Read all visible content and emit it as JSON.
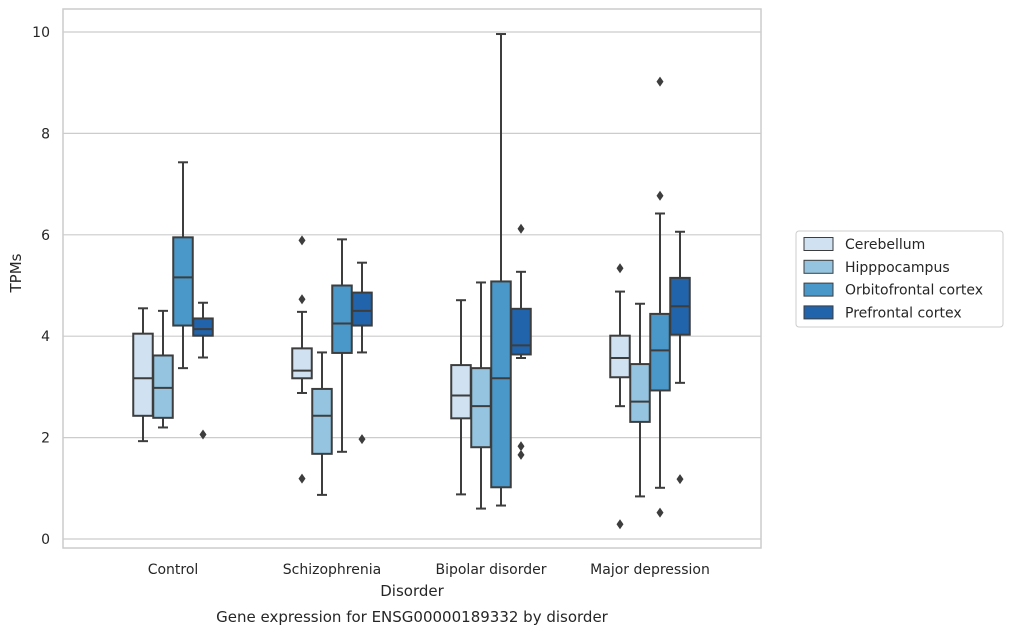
{
  "chart_data": {
    "type": "box",
    "caption": "Gene expression for ENSG00000189332 by disorder",
    "xlabel": "Disorder",
    "ylabel": "TPMs",
    "ylim": [
      -0.15,
      10.45
    ],
    "yticks": [
      0,
      2,
      4,
      6,
      8,
      10
    ],
    "grid": "horizontal",
    "legend_position": "right",
    "categories": [
      "Control",
      "Schizophrenia",
      "Bipolar disorder",
      "Major depression"
    ],
    "series": [
      {
        "name": "Cerebellum",
        "color": "#d0e1f2",
        "boxes": [
          {
            "whislo": 1.93,
            "q1": 2.43,
            "med": 3.17,
            "q3": 4.05,
            "whishi": 4.55,
            "fliers": []
          },
          {
            "whislo": 2.88,
            "q1": 3.17,
            "med": 3.32,
            "q3": 3.76,
            "whishi": 4.48,
            "fliers": [
              5.89,
              4.73,
              1.19
            ]
          },
          {
            "whislo": 0.88,
            "q1": 2.38,
            "med": 2.83,
            "q3": 3.43,
            "whishi": 4.71,
            "fliers": []
          },
          {
            "whislo": 2.62,
            "q1": 3.19,
            "med": 3.57,
            "q3": 4.01,
            "whishi": 4.88,
            "fliers": [
              5.34,
              0.29
            ]
          }
        ]
      },
      {
        "name": "Hipppocampus",
        "color": "#94c4df",
        "boxes": [
          {
            "whislo": 2.2,
            "q1": 2.39,
            "med": 2.98,
            "q3": 3.62,
            "whishi": 4.5,
            "fliers": []
          },
          {
            "whislo": 0.87,
            "q1": 1.68,
            "med": 2.43,
            "q3": 2.96,
            "whishi": 3.68,
            "fliers": []
          },
          {
            "whislo": 0.6,
            "q1": 1.81,
            "med": 2.62,
            "q3": 3.37,
            "whishi": 5.06,
            "fliers": []
          },
          {
            "whislo": 0.84,
            "q1": 2.31,
            "med": 2.71,
            "q3": 3.45,
            "whishi": 4.64,
            "fliers": []
          }
        ]
      },
      {
        "name": "Orbitofrontal cortex",
        "color": "#4a98c9",
        "boxes": [
          {
            "whislo": 3.37,
            "q1": 4.21,
            "med": 5.16,
            "q3": 5.95,
            "whishi": 7.43,
            "fliers": []
          },
          {
            "whislo": 1.72,
            "q1": 3.67,
            "med": 4.25,
            "q3": 5.0,
            "whishi": 5.91,
            "fliers": []
          },
          {
            "whislo": 0.66,
            "q1": 1.02,
            "med": 3.17,
            "q3": 5.08,
            "whishi": 9.96,
            "fliers": []
          },
          {
            "whislo": 1.01,
            "q1": 2.93,
            "med": 3.72,
            "q3": 4.44,
            "whishi": 6.42,
            "fliers": [
              9.02,
              6.77,
              0.52
            ]
          }
        ]
      },
      {
        "name": "Prefrontal cortex",
        "color": "#2164ab",
        "boxes": [
          {
            "whislo": 3.58,
            "q1": 4.01,
            "med": 4.14,
            "q3": 4.35,
            "whishi": 4.66,
            "fliers": [
              2.06
            ]
          },
          {
            "whislo": 3.68,
            "q1": 4.21,
            "med": 4.5,
            "q3": 4.86,
            "whishi": 5.45,
            "fliers": [
              1.97
            ]
          },
          {
            "whislo": 3.57,
            "q1": 3.64,
            "med": 3.82,
            "q3": 4.54,
            "whishi": 5.27,
            "fliers": [
              6.12,
              1.83,
              1.66
            ]
          },
          {
            "whislo": 3.08,
            "q1": 4.03,
            "med": 4.59,
            "q3": 5.15,
            "whishi": 6.06,
            "fliers": [
              1.18
            ]
          }
        ]
      }
    ]
  }
}
